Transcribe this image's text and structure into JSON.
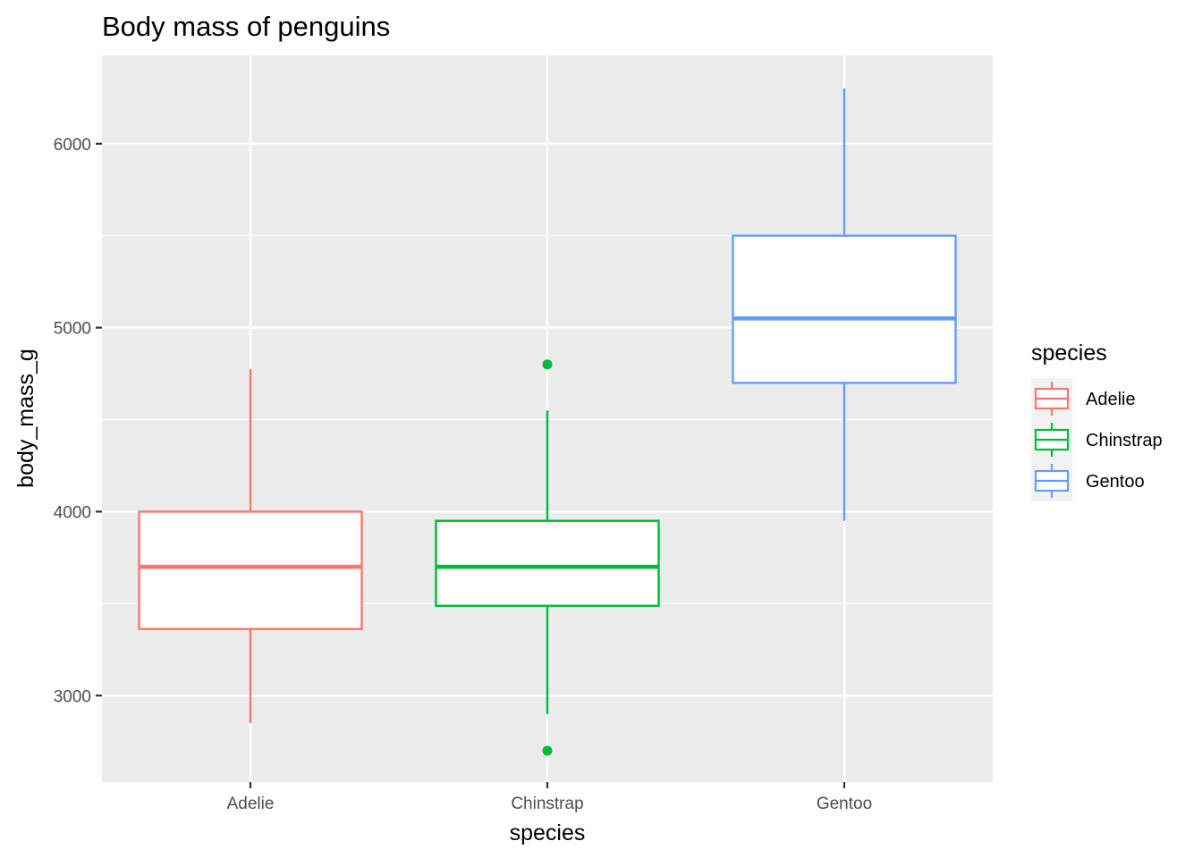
{
  "chart_data": {
    "type": "boxplot",
    "title": "Body mass of penguins",
    "xlabel": "species",
    "ylabel": "body_mass_g",
    "categories": [
      "Adelie",
      "Chinstrap",
      "Gentoo"
    ],
    "ylim": [
      2530,
      6480
    ],
    "y_major_ticks": [
      3000,
      4000,
      5000,
      6000
    ],
    "y_minor_ticks": [
      3500,
      4500,
      5500
    ],
    "grid": true,
    "legend": {
      "title": "species",
      "position": "right",
      "entries": [
        "Adelie",
        "Chinstrap",
        "Gentoo"
      ]
    },
    "series": [
      {
        "name": "Adelie",
        "color": "#F8766D",
        "whisker_low": 2850,
        "q1": 3362,
        "median": 3700,
        "q3": 4000,
        "whisker_high": 4775,
        "outliers": []
      },
      {
        "name": "Chinstrap",
        "color": "#00BA38",
        "whisker_low": 2900,
        "q1": 3488,
        "median": 3700,
        "q3": 3950,
        "whisker_high": 4550,
        "outliers": [
          4800,
          2700
        ]
      },
      {
        "name": "Gentoo",
        "color": "#619CFF",
        "whisker_low": 3950,
        "q1": 4700,
        "median": 5050,
        "q3": 5500,
        "whisker_high": 6300,
        "outliers": []
      }
    ]
  }
}
